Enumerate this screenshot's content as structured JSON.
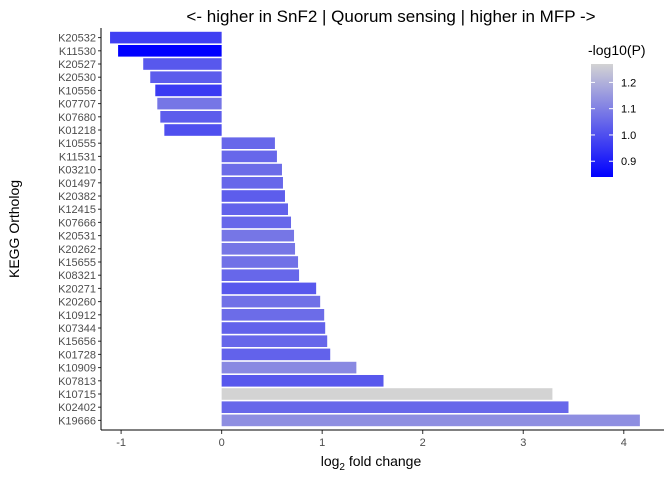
{
  "chart_data": {
    "type": "bar",
    "orientation": "horizontal",
    "title": "<- higher in SnF2 | Quorum sensing | higher in MFP ->",
    "xlabel_main": "log",
    "xlabel_sub": "2",
    "xlabel_rest": " fold change",
    "ylabel": "KEGG Ortholog",
    "xlim": [
      -1.2,
      4.4
    ],
    "x_ticks": [
      -1,
      0,
      1,
      2,
      3,
      4
    ],
    "x_tick_labels": [
      "-1",
      "0",
      "1",
      "2",
      "3",
      "4"
    ],
    "grid": false,
    "legend": {
      "title": "-log10(P)",
      "position": "top-right",
      "range": [
        0.84,
        1.27
      ],
      "ticks": [
        0.9,
        1.0,
        1.1,
        1.2
      ],
      "tick_labels": [
        "0.9",
        "1.0",
        "1.1",
        "1.2"
      ],
      "color_low": "#0000ff",
      "color_high": "#d3d3d3"
    },
    "bars": [
      {
        "label": "K20532",
        "value": -1.11,
        "p": 0.97
      },
      {
        "label": "K11530",
        "value": -1.03,
        "p": 0.84
      },
      {
        "label": "K20527",
        "value": -0.78,
        "p": 1.02
      },
      {
        "label": "K20530",
        "value": -0.71,
        "p": 1.03
      },
      {
        "label": "K10556",
        "value": -0.66,
        "p": 0.96
      },
      {
        "label": "K07707",
        "value": -0.64,
        "p": 1.08
      },
      {
        "label": "K07680",
        "value": -0.61,
        "p": 1.03
      },
      {
        "label": "K01218",
        "value": -0.57,
        "p": 1.0
      },
      {
        "label": "K10555",
        "value": 0.53,
        "p": 1.05
      },
      {
        "label": "K11531",
        "value": 0.55,
        "p": 1.05
      },
      {
        "label": "K03210",
        "value": 0.6,
        "p": 1.06
      },
      {
        "label": "K01497",
        "value": 0.61,
        "p": 1.05
      },
      {
        "label": "K20382",
        "value": 0.63,
        "p": 1.03
      },
      {
        "label": "K12415",
        "value": 0.66,
        "p": 1.04
      },
      {
        "label": "K07666",
        "value": 0.69,
        "p": 1.05
      },
      {
        "label": "K20531",
        "value": 0.72,
        "p": 1.08
      },
      {
        "label": "K20262",
        "value": 0.73,
        "p": 1.08
      },
      {
        "label": "K15655",
        "value": 0.76,
        "p": 1.07
      },
      {
        "label": "K08321",
        "value": 0.77,
        "p": 1.05
      },
      {
        "label": "K20271",
        "value": 0.94,
        "p": 1.02
      },
      {
        "label": "K20260",
        "value": 0.98,
        "p": 1.07
      },
      {
        "label": "K10912",
        "value": 1.02,
        "p": 1.06
      },
      {
        "label": "K07344",
        "value": 1.03,
        "p": 1.04
      },
      {
        "label": "K15656",
        "value": 1.05,
        "p": 1.05
      },
      {
        "label": "K01728",
        "value": 1.08,
        "p": 1.04
      },
      {
        "label": "K10909",
        "value": 1.34,
        "p": 1.12
      },
      {
        "label": "K07813",
        "value": 1.61,
        "p": 1.02
      },
      {
        "label": "K10715",
        "value": 3.29,
        "p": 1.27
      },
      {
        "label": "K02402",
        "value": 3.45,
        "p": 1.05
      },
      {
        "label": "K19666",
        "value": 4.16,
        "p": 1.13
      }
    ]
  }
}
